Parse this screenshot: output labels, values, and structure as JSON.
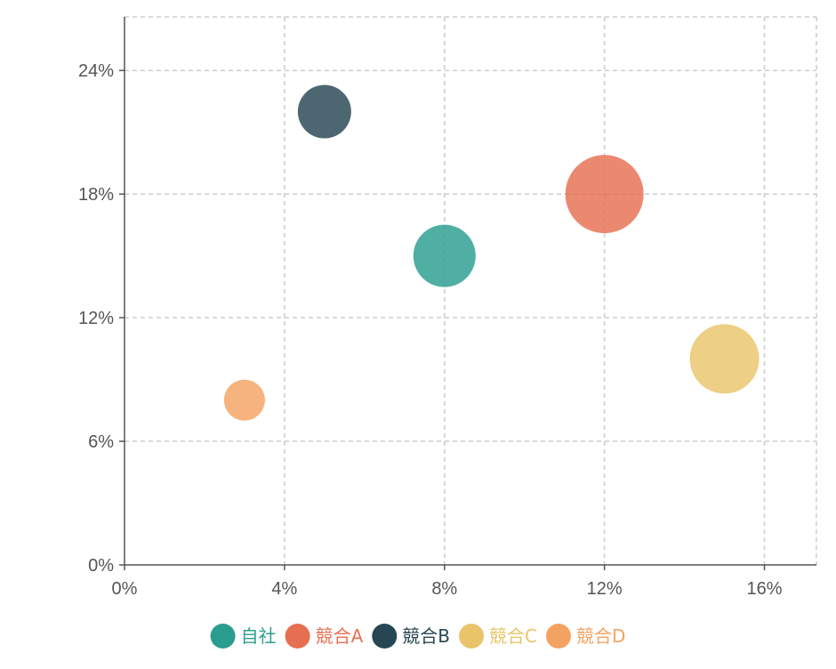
{
  "chart_data": {
    "type": "scatter",
    "title": "",
    "xlabel": "",
    "ylabel": "",
    "xlim": [
      0,
      17.3
    ],
    "ylim": [
      0,
      26.6
    ],
    "x_ticks": [
      0,
      4,
      8,
      12,
      16
    ],
    "y_ticks": [
      0,
      6,
      12,
      18,
      24
    ],
    "x_tick_labels": [
      "0%",
      "4%",
      "8%",
      "12%",
      "16%"
    ],
    "y_tick_labels": [
      "0%",
      "6%",
      "12%",
      "18%",
      "24%"
    ],
    "grid": true,
    "legend_position": "bottom",
    "series": [
      {
        "name": "自社",
        "color": "#2a9d8f",
        "points": [
          {
            "x": 8,
            "y": 15,
            "size": 35
          }
        ]
      },
      {
        "name": "競合A",
        "color": "#e76f51",
        "points": [
          {
            "x": 12,
            "y": 18,
            "size": 44
          }
        ]
      },
      {
        "name": "競合B",
        "color": "#264653",
        "points": [
          {
            "x": 5,
            "y": 22,
            "size": 30
          }
        ]
      },
      {
        "name": "競合C",
        "color": "#e9c46a",
        "points": [
          {
            "x": 15,
            "y": 10,
            "size": 39
          }
        ]
      },
      {
        "name": "競合D",
        "color": "#f4a261",
        "points": [
          {
            "x": 3,
            "y": 8,
            "size": 23
          }
        ]
      }
    ]
  }
}
